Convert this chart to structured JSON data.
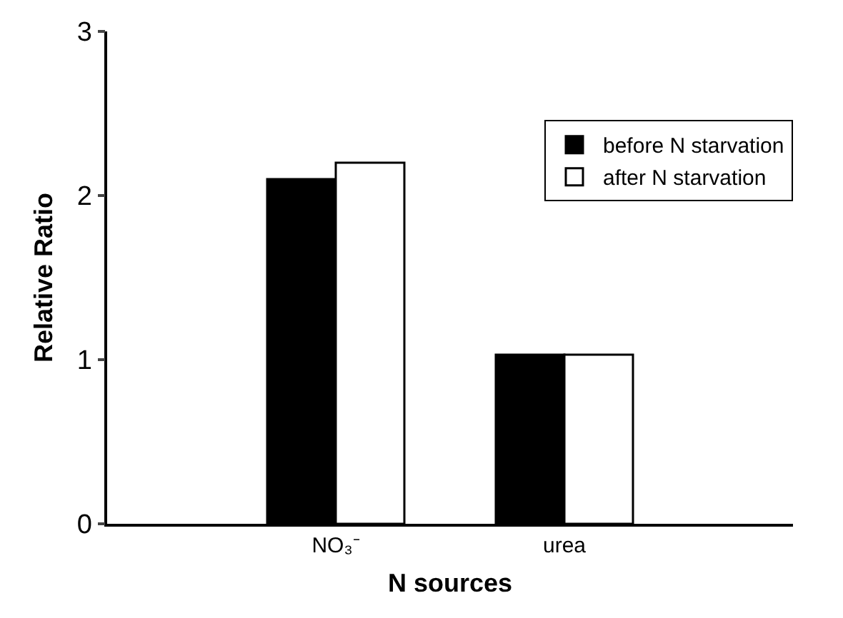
{
  "chart_data": {
    "type": "bar",
    "xlabel": "N sources",
    "ylabel": "Relative Ratio",
    "categories": [
      "NO₃⁻",
      "urea"
    ],
    "series": [
      {
        "name": "before N starvation",
        "color": "#000000",
        "values": [
          2.1,
          1.03
        ]
      },
      {
        "name": "after N starvation",
        "color": "#ffffff",
        "values": [
          2.2,
          1.03
        ]
      }
    ],
    "ylim": [
      0,
      3
    ],
    "yticks": [
      0,
      1,
      2,
      3
    ],
    "grid": false,
    "legend": "top right"
  }
}
